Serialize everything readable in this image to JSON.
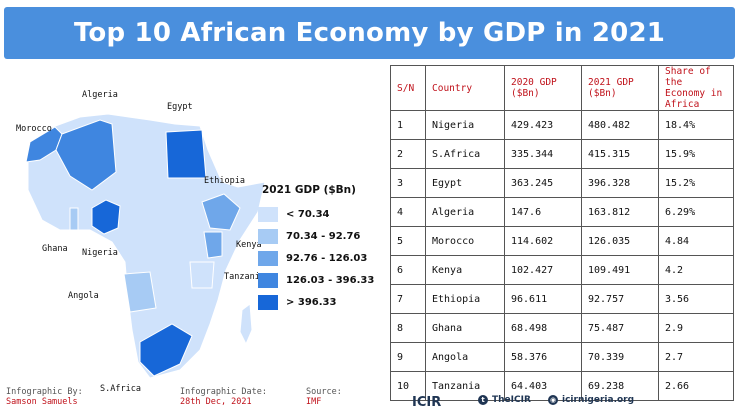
{
  "title": "Top 10 African Economy by GDP in 2021",
  "legend": {
    "title": "2021 GDP ($Bn)",
    "items": [
      {
        "label": "< 70.34",
        "color": "#cfe2fb"
      },
      {
        "label": "70.34 - 92.76",
        "color": "#a7cbf4"
      },
      {
        "label": "92.76 - 126.03",
        "color": "#6fa7ea"
      },
      {
        "label": "126.03 - 396.33",
        "color": "#3f86e0"
      },
      {
        "label": "> 396.33",
        "color": "#1767d8"
      }
    ]
  },
  "map_labels": {
    "algeria": "Algeria",
    "egypt": "Egypt",
    "morocco": "Morocco",
    "ethiopia": "Ethiopia",
    "ghana": "Ghana",
    "nigeria": "Nigeria",
    "kenya": "Kenya",
    "tanzania": "Tanzania",
    "angola": "Angola",
    "s_africa": "S.Africa"
  },
  "table": {
    "headers": [
      "S/N",
      "Country",
      "2020 GDP ($Bn)",
      "2021 GDP ($Bn)",
      "Share of the Economy in Africa"
    ],
    "rows": [
      {
        "sn": "1",
        "country": "Nigeria",
        "gdp2020": "429.423",
        "gdp2021": "480.482",
        "share": "18.4%"
      },
      {
        "sn": "2",
        "country": "S.Africa",
        "gdp2020": "335.344",
        "gdp2021": "415.315",
        "share": "15.9%"
      },
      {
        "sn": "3",
        "country": "Egypt",
        "gdp2020": "363.245",
        "gdp2021": "396.328",
        "share": "15.2%"
      },
      {
        "sn": "4",
        "country": "Algeria",
        "gdp2020": "147.6",
        "gdp2021": "163.812",
        "share": "6.29%"
      },
      {
        "sn": "5",
        "country": "Morocco",
        "gdp2020": "114.602",
        "gdp2021": "126.035",
        "share": "4.84"
      },
      {
        "sn": "6",
        "country": "Kenya",
        "gdp2020": "102.427",
        "gdp2021": "109.491",
        "share": "4.2"
      },
      {
        "sn": "7",
        "country": "Ethiopia",
        "gdp2020": "96.611",
        "gdp2021": "92.757",
        "share": "3.56"
      },
      {
        "sn": "8",
        "country": "Ghana",
        "gdp2020": "68.498",
        "gdp2021": "75.487",
        "share": "2.9"
      },
      {
        "sn": "9",
        "country": "Angola",
        "gdp2020": "58.376",
        "gdp2021": "70.339",
        "share": "2.7"
      },
      {
        "sn": "10",
        "country": "Tanzania",
        "gdp2020": "64.403",
        "gdp2021": "69.238",
        "share": "2.66"
      }
    ]
  },
  "footer": {
    "infographic_by_label": "Infographic By:",
    "infographic_by": "Samson Samuels",
    "date_label": "Infographic Date:",
    "date": "28th Dec, 2021",
    "source_label": "Source:",
    "source": "IMF"
  },
  "brands": {
    "logo": "ICIR",
    "twitter": "TheICIR",
    "website": "icirnigeria.org"
  }
}
